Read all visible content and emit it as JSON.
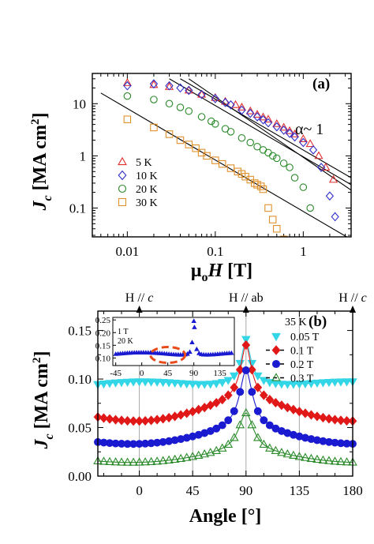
{
  "chart_data": [
    {
      "type": "scatter",
      "panel_label": "(a)",
      "x_scale": "log",
      "y_scale": "log",
      "xlim": [
        0.004,
        3.5
      ],
      "ylim": [
        0.028,
        38
      ],
      "x_ticks": [
        {
          "v": 0.01,
          "label": "0.01"
        },
        {
          "v": 0.1,
          "label": "0.1"
        },
        {
          "v": 1,
          "label": "1"
        }
      ],
      "y_ticks": [
        {
          "v": 0.1,
          "label": "0.1"
        },
        {
          "v": 1,
          "label": "1"
        },
        {
          "v": 10,
          "label": "10"
        }
      ],
      "xlabel": {
        "main": "μ",
        "sub": "o",
        "var": "H",
        "unit": " [T]"
      },
      "ylabel": {
        "var": "J",
        "sub": "c",
        "unit": " [MA cm",
        "sup": "2",
        "close": "]"
      },
      "annotation": "α~ 1",
      "legend_position": "lower-left",
      "series": [
        {
          "name": "5 K",
          "marker": "triangle",
          "color": "#e03030",
          "x": [
            0.01,
            0.02,
            0.03,
            0.05,
            0.07,
            0.1,
            0.13,
            0.17,
            0.2,
            0.25,
            0.3,
            0.35,
            0.4,
            0.5,
            0.6,
            0.7,
            0.8,
            1.0,
            1.2,
            1.5,
            1.8,
            2.2
          ],
          "y": [
            25,
            23,
            21,
            18,
            15,
            13,
            11,
            9.5,
            8.5,
            7.2,
            6.2,
            5.5,
            5.0,
            4.1,
            3.5,
            3.0,
            2.6,
            2.1,
            1.7,
            1.0,
            0.6,
            0.35
          ]
        },
        {
          "name": "10 K",
          "marker": "diamond",
          "color": "#3030cc",
          "x": [
            0.01,
            0.02,
            0.03,
            0.04,
            0.05,
            0.07,
            0.1,
            0.13,
            0.15,
            0.2,
            0.25,
            0.3,
            0.35,
            0.4,
            0.5,
            0.6,
            0.7,
            0.8,
            1.0,
            1.3,
            1.6,
            2.0,
            2.3
          ],
          "y": [
            22,
            24,
            22,
            20,
            18,
            15,
            12.5,
            10.5,
            9.5,
            7.5,
            6.5,
            5.6,
            4.9,
            4.3,
            3.6,
            3.1,
            2.7,
            2.3,
            1.8,
            1.3,
            0.6,
            0.17,
            0.068
          ]
        },
        {
          "name": "20 K",
          "marker": "circle",
          "color": "#2a8a2a",
          "x": [
            0.01,
            0.02,
            0.03,
            0.04,
            0.05,
            0.07,
            0.09,
            0.1,
            0.13,
            0.15,
            0.2,
            0.25,
            0.3,
            0.35,
            0.4,
            0.45,
            0.5,
            0.6,
            0.7,
            0.8,
            1.0,
            1.2
          ],
          "y": [
            14,
            12,
            10,
            8.5,
            7.2,
            5.6,
            4.6,
            4.1,
            3.3,
            2.9,
            2.2,
            1.8,
            1.5,
            1.3,
            1.15,
            1.0,
            0.9,
            0.72,
            0.6,
            0.38,
            0.25,
            0.1
          ]
        },
        {
          "name": "30 K",
          "marker": "square",
          "color": "#e0902a",
          "x": [
            0.01,
            0.02,
            0.03,
            0.04,
            0.05,
            0.06,
            0.07,
            0.08,
            0.1,
            0.12,
            0.15,
            0.18,
            0.2,
            0.22,
            0.25,
            0.28,
            0.3,
            0.33,
            0.35,
            0.4,
            0.45,
            0.5,
            0.6
          ],
          "y": [
            5.0,
            3.5,
            2.6,
            2.0,
            1.65,
            1.4,
            1.15,
            1.0,
            0.82,
            0.7,
            0.58,
            0.5,
            0.45,
            0.4,
            0.35,
            0.3,
            0.28,
            0.26,
            0.23,
            0.1,
            0.06,
            0.04,
            0.025
          ]
        }
      ],
      "fit_lines": [
        {
          "x": [
            0.03,
            3.5
          ],
          "y": [
            30,
            0.28
          ]
        },
        {
          "x": [
            0.04,
            3.5
          ],
          "y": [
            30,
            0.38
          ]
        },
        {
          "x": [
            0.005,
            3.5
          ],
          "y": [
            16,
            0.025
          ]
        },
        {
          "x": [
            0.05,
            3.5
          ],
          "y": [
            30,
            0.22
          ]
        }
      ]
    },
    {
      "type": "line",
      "panel_label": "(b)",
      "xlim": [
        -35,
        180
      ],
      "ylim": [
        0,
        0.17
      ],
      "x_ticks": [
        {
          "v": 0,
          "label": "0"
        },
        {
          "v": 45,
          "label": "45"
        },
        {
          "v": 90,
          "label": "90"
        },
        {
          "v": 135,
          "label": "135"
        },
        {
          "v": 180,
          "label": "180"
        }
      ],
      "y_ticks": [
        {
          "v": 0,
          "label": "0.00"
        },
        {
          "v": 0.05,
          "label": "0.05"
        },
        {
          "v": 0.1,
          "label": "0.10"
        },
        {
          "v": 0.15,
          "label": "0.15"
        }
      ],
      "xlabel": "Angle [°]",
      "ylabel": {
        "var": "J",
        "sub": "c",
        "unit": " [MA cm",
        "sup": "2",
        "close": "]"
      },
      "top_labels": [
        {
          "x": 0,
          "text": "H // ",
          "italic": "c"
        },
        {
          "x": 90,
          "text": "H // ab",
          "italic": ""
        },
        {
          "x": 180,
          "text": "H // ",
          "italic": "c"
        }
      ],
      "legend_title": "35 K",
      "legend_position": "upper-right",
      "series": [
        {
          "name": "0.05 T",
          "marker": "triangle-down",
          "color": "#33d6e6",
          "dashed": false,
          "base": 0.093,
          "dip": 0.004,
          "peak": 0.145,
          "width": 4.5
        },
        {
          "name": "0.1 T",
          "marker": "diamond",
          "color": "#e01818",
          "dashed": true,
          "base": 0.063,
          "dip": -0.007,
          "peak": 0.128,
          "width": 5.5
        },
        {
          "name": "0.2 T",
          "marker": "circle",
          "color": "#1a1ad0",
          "dashed": true,
          "base": 0.036,
          "dip": -0.004,
          "peak": 0.105,
          "width": 6.5
        },
        {
          "name": "0.3 T",
          "marker": "triangle",
          "color": "#2a8a2a",
          "dashed": true,
          "base": 0.016,
          "dip": -0.003,
          "peak": 0.062,
          "width": 7.5
        }
      ],
      "inset": {
        "field_label": "1 T",
        "temp_label": "20 K",
        "xlim": [
          -50,
          160
        ],
        "ylim": [
          0.07,
          0.26
        ],
        "x_ticks": [
          {
            "v": -45,
            "label": "-45"
          },
          {
            "v": 0,
            "label": "0"
          },
          {
            "v": 45,
            "label": "45"
          },
          {
            "v": 90,
            "label": "90"
          },
          {
            "v": 135,
            "label": "135"
          }
        ],
        "y_ticks": [
          {
            "v": 0.1,
            "label": "0.10"
          },
          {
            "v": 0.15,
            "label": "0.15"
          },
          {
            "v": 0.2,
            "label": "0.20"
          },
          {
            "v": 0.25,
            "label": "0.25"
          }
        ],
        "color": "#1a1ad0",
        "base": 0.115,
        "peak": 0.245,
        "highlight_ellipse": {
          "cx": 45,
          "cy": 0.112,
          "color": "#e84a1a"
        }
      }
    }
  ]
}
